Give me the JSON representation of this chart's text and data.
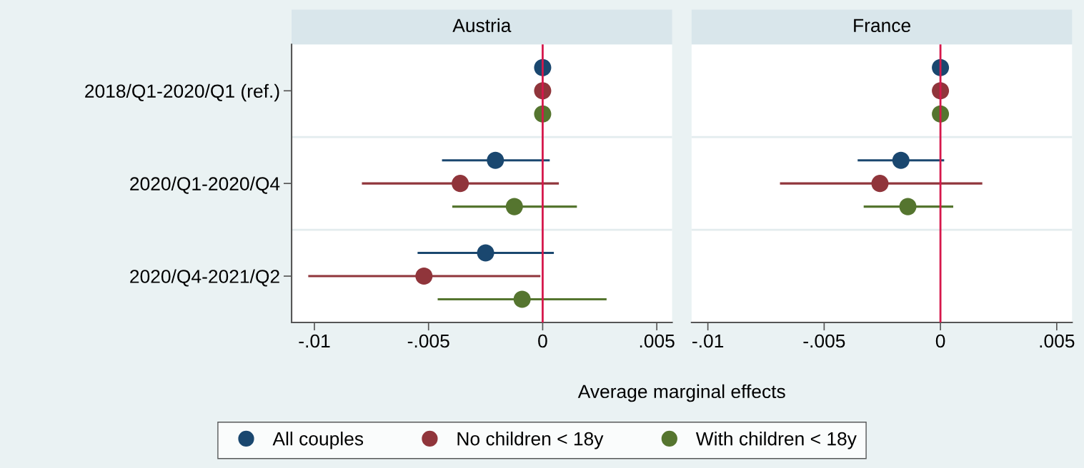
{
  "chart_data": [
    {
      "type": "scatter",
      "orientation": "horizontal",
      "title": "Austria",
      "xlabel": "Average marginal effects",
      "categories": [
        "2018/Q1-2020/Q1 (ref.)",
        "2020/Q1-2020/Q4",
        "2020/Q4-2021/Q2"
      ],
      "series": [
        {
          "name": "All couples",
          "color": "#1a476f",
          "values": [
            0,
            -0.00207,
            -0.0025
          ],
          "errors": [
            null,
            [
              -0.00441,
              0.00031
            ],
            [
              -0.00548,
              0.00049
            ]
          ]
        },
        {
          "name": "No children < 18y",
          "color": "#90353b",
          "values": [
            0,
            -0.00361,
            -0.0052
          ],
          "errors": [
            null,
            [
              -0.00792,
              0.00071
            ],
            [
              -0.01027,
              -0.0001
            ]
          ]
        },
        {
          "name": "With children < 18y",
          "color": "#55752f",
          "values": [
            0,
            -0.00124,
            -0.0009
          ],
          "errors": [
            null,
            [
              -0.00396,
              0.0015
            ],
            [
              -0.0046,
              0.0028
            ]
          ]
        }
      ],
      "xlim": [
        -0.011,
        0.00567
      ],
      "xticks": [
        {
          "value": -0.01,
          "label": "-.01"
        },
        {
          "value": -0.005,
          "label": "-.005"
        },
        0,
        {
          "value": 0.005,
          "label": ".005"
        }
      ],
      "ref_lines": [
        {
          "axis": "x",
          "value": 0,
          "color": "#d6174b"
        }
      ],
      "grid": "y",
      "marker": "circle",
      "legend": "bottom"
    },
    {
      "type": "scatter",
      "orientation": "horizontal",
      "title": "France",
      "categories": [
        null,
        null,
        null
      ],
      "series": [
        {
          "color": "#1a476f",
          "values": [
            0,
            -0.0017,
            null
          ],
          "errors": [
            null,
            [
              -0.00356,
              0.00016
            ],
            null
          ]
        },
        {
          "color": "#90353b",
          "values": [
            0,
            -0.0026,
            null
          ],
          "errors": [
            null,
            [
              -0.0069,
              0.0018
            ],
            null
          ]
        },
        {
          "color": "#55752f",
          "values": [
            0,
            -0.0014,
            null
          ],
          "errors": [
            null,
            [
              -0.0033,
              0.00055
            ],
            null
          ]
        }
      ],
      "xlim": [
        -0.0107,
        0.00566
      ],
      "xticks": [
        {
          "value": -0.01,
          "label": "-.01"
        },
        {
          "value": -0.005,
          "label": "-.005"
        },
        0,
        {
          "value": 0.005,
          "label": ".005"
        }
      ],
      "ref_lines": [
        {
          "axis": "x",
          "value": 0,
          "color": "#d6174b"
        }
      ],
      "grid": "y",
      "marker": "circle",
      "tick_labels": "x",
      "legend": false
    }
  ]
}
